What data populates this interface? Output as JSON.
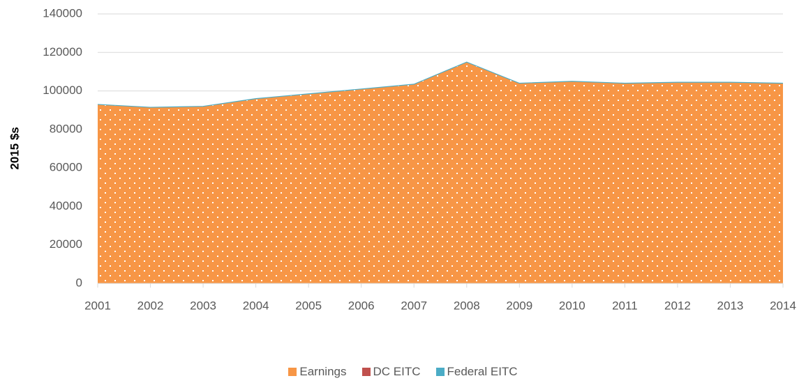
{
  "chart_data": {
    "type": "stacked_area",
    "y_label": "2015 $s",
    "categories": [
      "2001",
      "2002",
      "2003",
      "2004",
      "2005",
      "2006",
      "2007",
      "2008",
      "2009",
      "2010",
      "2011",
      "2012",
      "2013",
      "2014"
    ],
    "series": [
      {
        "name": "Earnings",
        "color": "#f79646",
        "values": [
          93000,
          91500,
          92000,
          96000,
          98500,
          101000,
          103500,
          115000,
          104000,
          105000,
          104000,
          104500,
          104500,
          104000
        ]
      },
      {
        "name": "DC EITC",
        "color": "#c0504d",
        "values": [
          0,
          0,
          0,
          0,
          0,
          0,
          0,
          0,
          0,
          0,
          0,
          0,
          0,
          0
        ]
      },
      {
        "name": "Federal EITC",
        "color": "#4bacc6",
        "values": [
          0,
          0,
          0,
          0,
          0,
          0,
          0,
          0,
          0,
          0,
          0,
          0,
          0,
          0
        ]
      }
    ],
    "ylim": [
      0,
      140000
    ],
    "yticks": [
      0,
      20000,
      40000,
      60000,
      80000,
      100000,
      120000,
      140000
    ],
    "grid": true,
    "legend": "bottom"
  }
}
